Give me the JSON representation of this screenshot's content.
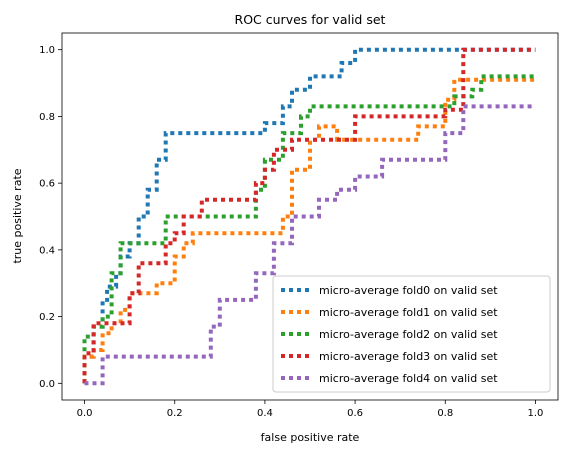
{
  "chart_data": {
    "type": "line",
    "title": "ROC curves for valid set",
    "xlabel": "false positive rate",
    "ylabel": "true positive rate",
    "xlim": [
      -0.05,
      1.05
    ],
    "ylim": [
      -0.05,
      1.05
    ],
    "xticks": [
      "0.0",
      "0.2",
      "0.4",
      "0.6",
      "0.8",
      "1.0"
    ],
    "yticks": [
      "0.0",
      "0.2",
      "0.4",
      "0.6",
      "0.8",
      "1.0"
    ],
    "grid": false,
    "legend_position": "bottom-right",
    "line_style": "dotted",
    "series": [
      {
        "name": "micro-average fold0 on valid set",
        "color": "#1f77b4",
        "x": [
          0.0,
          0.0,
          0.02,
          0.02,
          0.04,
          0.04,
          0.05,
          0.05,
          0.07,
          0.07,
          0.08,
          0.08,
          0.1,
          0.1,
          0.12,
          0.12,
          0.14,
          0.14,
          0.16,
          0.16,
          0.18,
          0.18,
          0.2,
          0.2,
          0.4,
          0.4,
          0.44,
          0.44,
          0.46,
          0.46,
          0.5,
          0.5,
          0.57,
          0.57,
          0.6,
          0.6,
          0.65,
          0.65,
          1.0
        ],
        "y": [
          0.0,
          0.08,
          0.08,
          0.17,
          0.17,
          0.25,
          0.25,
          0.29,
          0.29,
          0.33,
          0.33,
          0.38,
          0.38,
          0.42,
          0.42,
          0.5,
          0.5,
          0.58,
          0.58,
          0.67,
          0.67,
          0.75,
          0.75,
          0.75,
          0.75,
          0.78,
          0.78,
          0.83,
          0.83,
          0.88,
          0.88,
          0.92,
          0.92,
          0.96,
          0.96,
          1.0,
          1.0,
          1.0,
          1.0
        ]
      },
      {
        "name": "micro-average fold1 on valid set",
        "color": "#ff7f0e",
        "x": [
          0.0,
          0.0,
          0.02,
          0.02,
          0.04,
          0.04,
          0.06,
          0.06,
          0.08,
          0.08,
          0.1,
          0.1,
          0.12,
          0.12,
          0.16,
          0.16,
          0.2,
          0.2,
          0.22,
          0.22,
          0.24,
          0.24,
          0.44,
          0.44,
          0.46,
          0.46,
          0.5,
          0.5,
          0.52,
          0.52,
          0.56,
          0.56,
          0.74,
          0.74,
          0.8,
          0.8,
          0.82,
          0.82,
          1.0
        ],
        "y": [
          0.0,
          0.08,
          0.08,
          0.1,
          0.1,
          0.15,
          0.15,
          0.18,
          0.18,
          0.22,
          0.22,
          0.27,
          0.27,
          0.27,
          0.27,
          0.3,
          0.3,
          0.38,
          0.38,
          0.42,
          0.42,
          0.45,
          0.45,
          0.5,
          0.5,
          0.64,
          0.64,
          0.73,
          0.73,
          0.77,
          0.77,
          0.73,
          0.73,
          0.77,
          0.77,
          0.85,
          0.85,
          0.91,
          0.91
        ]
      },
      {
        "name": "micro-average fold2 on valid set",
        "color": "#2ca02c",
        "x": [
          0.0,
          0.0,
          0.02,
          0.02,
          0.04,
          0.04,
          0.06,
          0.06,
          0.08,
          0.08,
          0.12,
          0.12,
          0.18,
          0.18,
          0.38,
          0.38,
          0.4,
          0.4,
          0.44,
          0.44,
          0.48,
          0.48,
          0.5,
          0.5,
          0.82,
          0.82,
          0.86,
          0.86,
          0.88,
          0.88,
          1.0
        ],
        "y": [
          0.0,
          0.14,
          0.14,
          0.17,
          0.17,
          0.2,
          0.2,
          0.33,
          0.33,
          0.42,
          0.42,
          0.42,
          0.42,
          0.5,
          0.5,
          0.58,
          0.58,
          0.67,
          0.67,
          0.75,
          0.75,
          0.8,
          0.8,
          0.83,
          0.83,
          0.86,
          0.86,
          0.88,
          0.88,
          0.92,
          0.92
        ]
      },
      {
        "name": "micro-average fold3 on valid set",
        "color": "#d62728",
        "x": [
          0.0,
          0.0,
          0.02,
          0.02,
          0.1,
          0.1,
          0.12,
          0.12,
          0.16,
          0.16,
          0.18,
          0.18,
          0.2,
          0.2,
          0.22,
          0.22,
          0.26,
          0.26,
          0.38,
          0.38,
          0.4,
          0.4,
          0.42,
          0.42,
          0.46,
          0.46,
          0.5,
          0.5,
          0.6,
          0.6,
          0.8,
          0.8,
          0.84,
          0.84,
          1.0
        ],
        "y": [
          0.0,
          0.09,
          0.09,
          0.18,
          0.18,
          0.27,
          0.27,
          0.36,
          0.36,
          0.36,
          0.36,
          0.42,
          0.42,
          0.45,
          0.45,
          0.5,
          0.5,
          0.55,
          0.55,
          0.6,
          0.6,
          0.64,
          0.64,
          0.7,
          0.7,
          0.73,
          0.73,
          0.73,
          0.73,
          0.8,
          0.8,
          0.82,
          0.82,
          1.0,
          1.0
        ]
      },
      {
        "name": "micro-average fold4 on valid set",
        "color": "#9467bd",
        "x": [
          0.0,
          0.0,
          0.04,
          0.04,
          0.28,
          0.28,
          0.3,
          0.3,
          0.38,
          0.38,
          0.42,
          0.42,
          0.46,
          0.46,
          0.52,
          0.52,
          0.56,
          0.56,
          0.6,
          0.6,
          0.66,
          0.66,
          0.7,
          0.7,
          0.8,
          0.8,
          0.84,
          0.84,
          1.0
        ],
        "y": [
          0.0,
          0.0,
          0.0,
          0.08,
          0.08,
          0.17,
          0.17,
          0.25,
          0.25,
          0.33,
          0.33,
          0.42,
          0.42,
          0.5,
          0.5,
          0.55,
          0.55,
          0.58,
          0.58,
          0.62,
          0.62,
          0.67,
          0.67,
          0.67,
          0.67,
          0.75,
          0.75,
          0.83,
          0.83
        ]
      }
    ]
  }
}
